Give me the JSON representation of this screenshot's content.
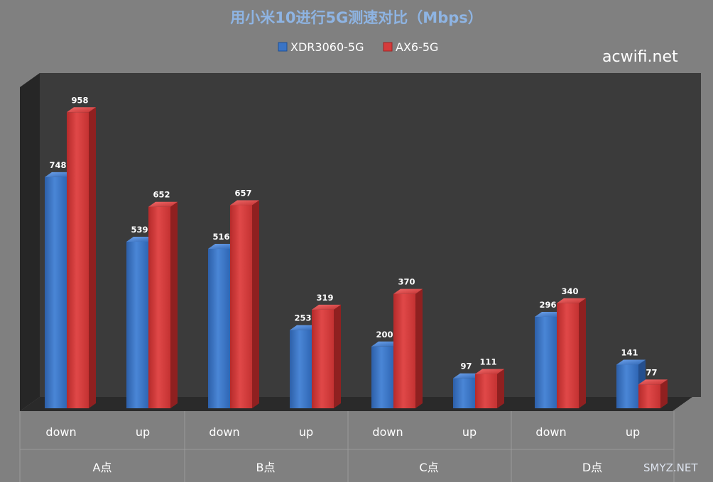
{
  "chart_data": {
    "type": "bar",
    "title": "用小米10进行5G测速对比（Mbps）",
    "categories": [
      "down",
      "up",
      "down",
      "up",
      "down",
      "up",
      "down",
      "up"
    ],
    "groups": [
      "A点",
      "B点",
      "C点",
      "D点"
    ],
    "series": [
      {
        "name": "XDR3060-5G",
        "color": "#3a74c6",
        "values": [
          748,
          539,
          516,
          253,
          200,
          97,
          296,
          141
        ]
      },
      {
        "name": "AX6-5G",
        "color": "#d63b3b",
        "values": [
          958,
          652,
          657,
          319,
          370,
          111,
          340,
          77
        ]
      }
    ],
    "ylim": [
      0,
      1000
    ],
    "grid": false,
    "legend_position": "top-center",
    "three_d": true
  },
  "watermarks": [
    "acwifi.net",
    "SMYZ.NET"
  ]
}
